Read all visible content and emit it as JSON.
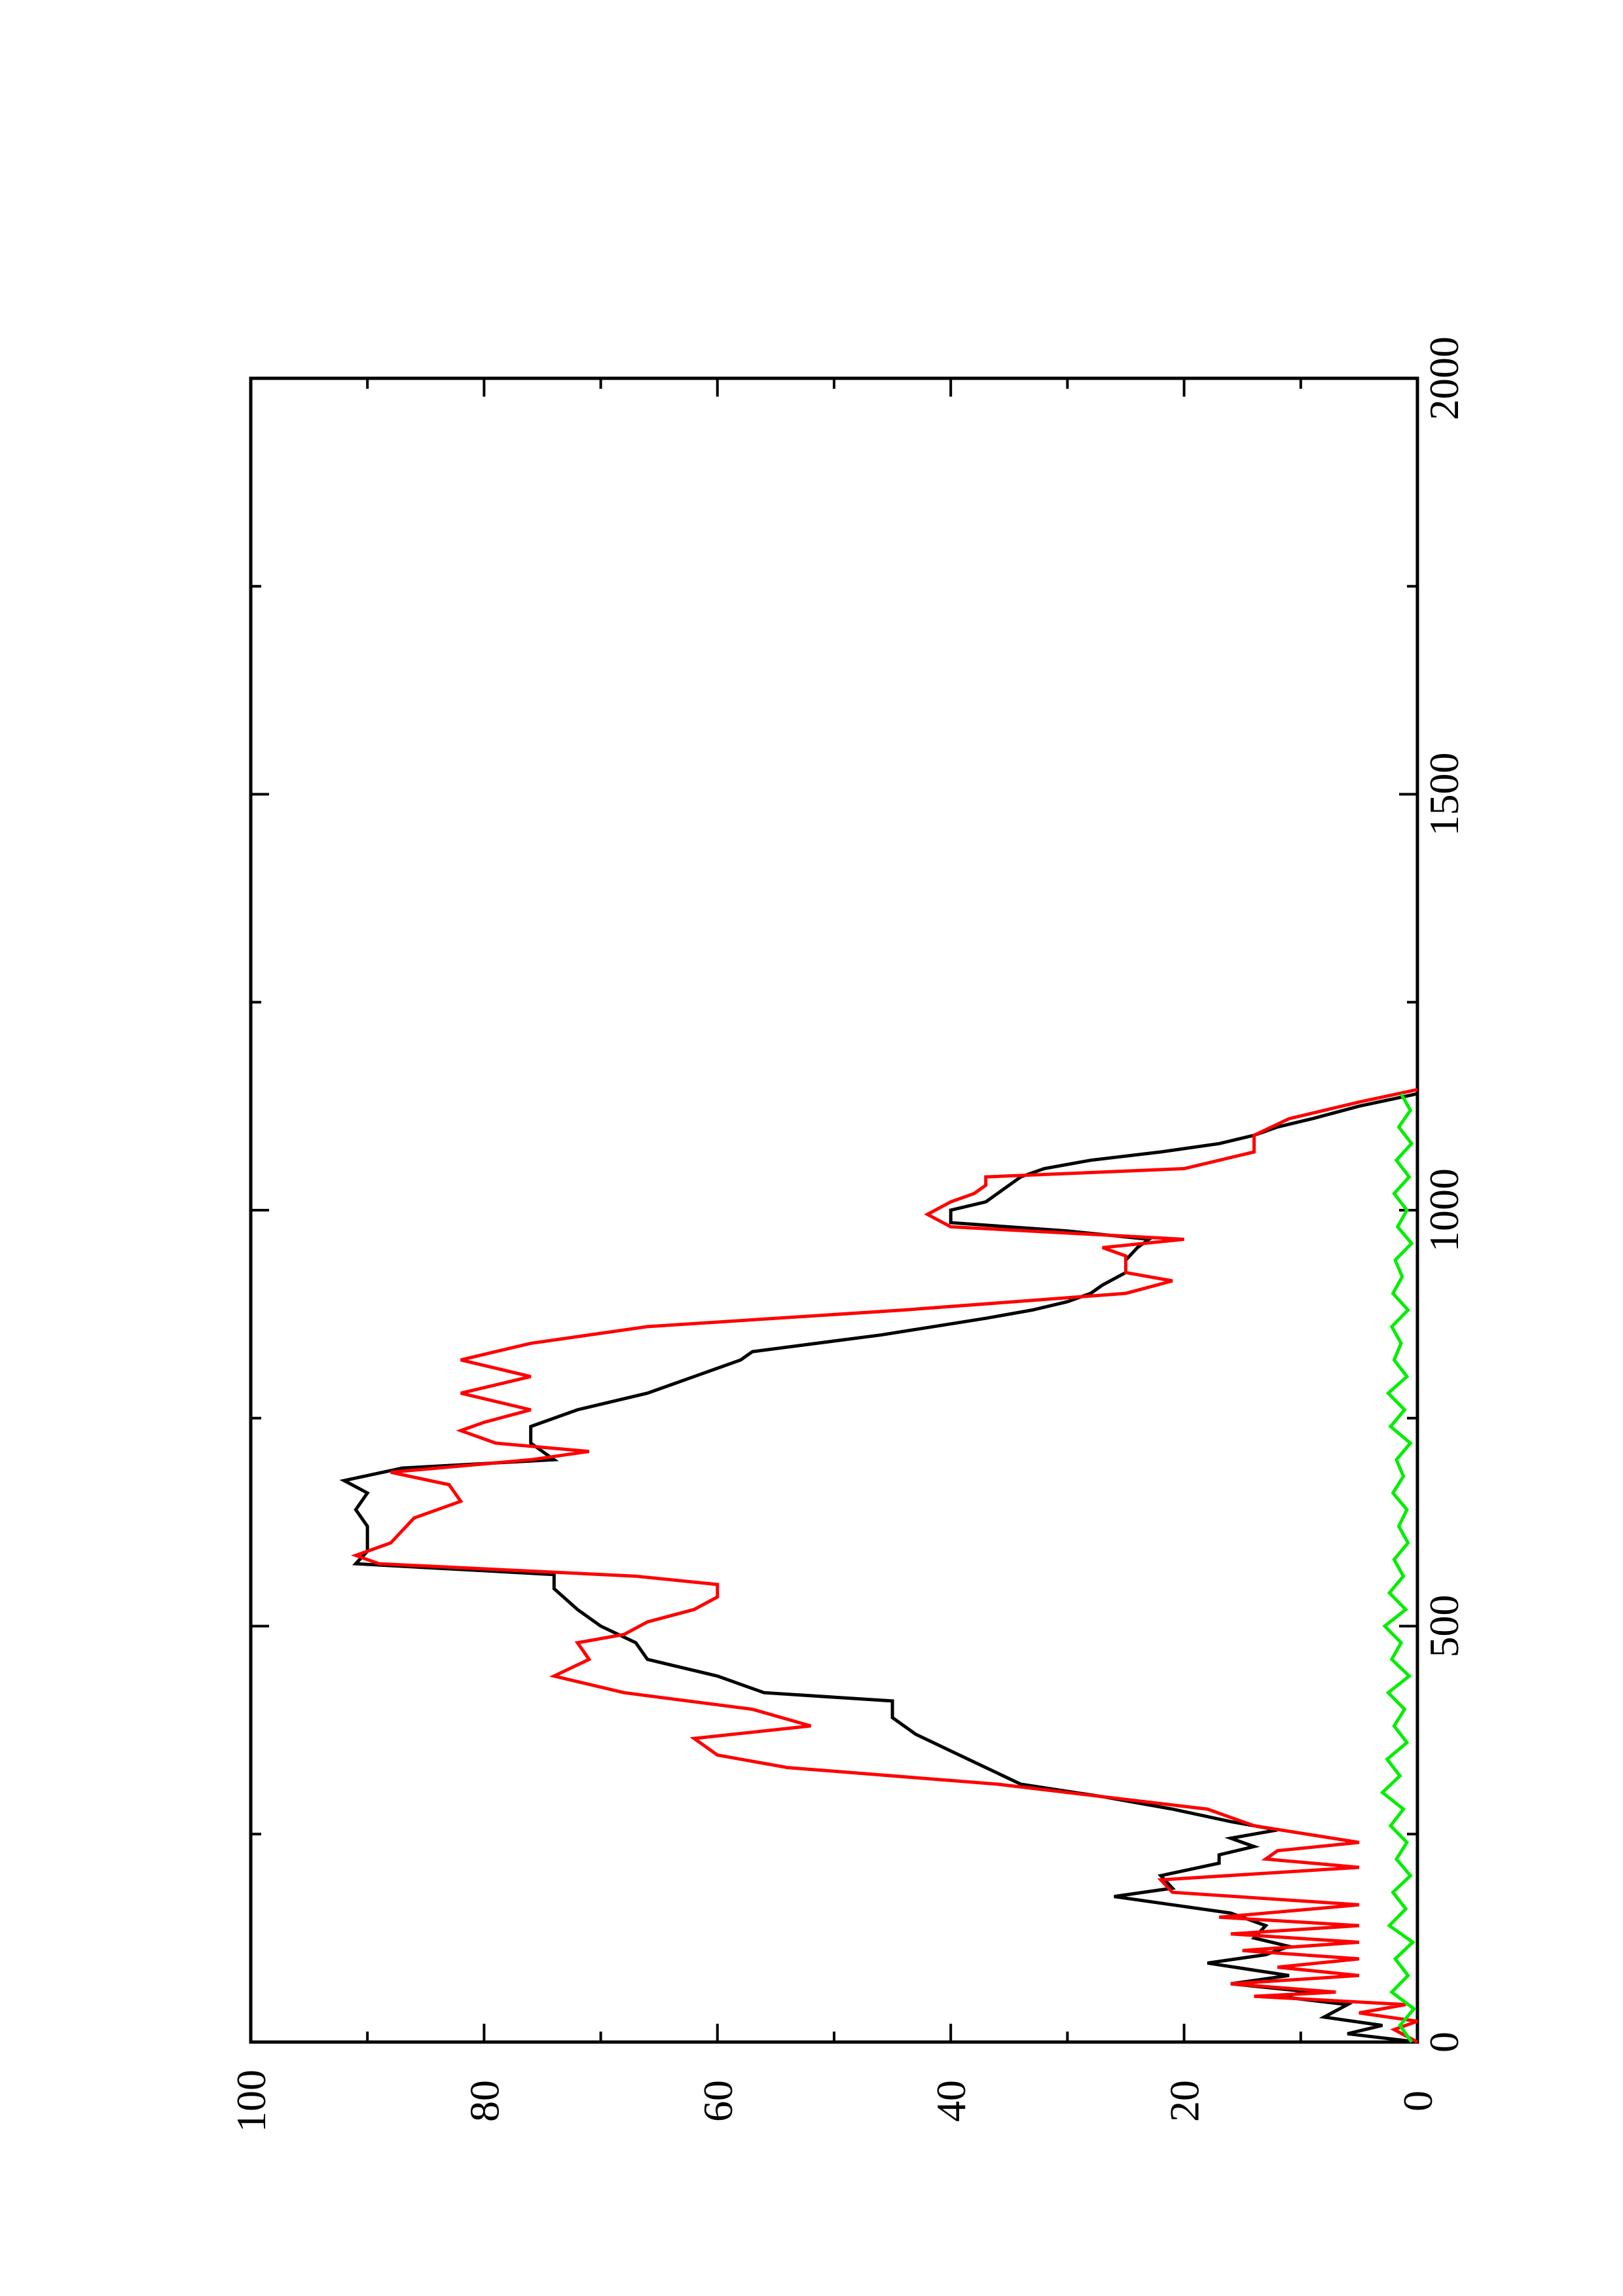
{
  "chart_data": {
    "type": "line",
    "orientation": "rotated 90 degrees counter-clockwise (x axis runs bottom-to-top, y axis runs right-to-left)",
    "title": "",
    "xlabel": "",
    "ylabel": "",
    "xlim": [
      0,
      2000
    ],
    "ylim": [
      0,
      100
    ],
    "x_ticks_major": [
      0,
      500,
      1000,
      1500,
      2000
    ],
    "x_ticks_minor": [
      250,
      750,
      1250,
      1750
    ],
    "y_ticks_major": [
      0,
      20,
      40,
      60,
      80,
      100
    ],
    "y_ticks_minor": [
      10,
      30,
      50,
      70,
      90
    ],
    "x_tick_labels": [
      "0",
      "500",
      "1000",
      "1500",
      "2000"
    ],
    "y_tick_labels": [
      "0",
      "20",
      "40",
      "60",
      "80",
      "100"
    ],
    "grid": false,
    "legend": "none",
    "series": [
      {
        "color": "#000000",
        "points": [
          [
            0,
            0
          ],
          [
            10,
            6
          ],
          [
            20,
            3
          ],
          [
            30,
            8
          ],
          [
            45,
            6
          ],
          [
            55,
            12
          ],
          [
            60,
            9
          ],
          [
            70,
            16
          ],
          [
            80,
            11
          ],
          [
            95,
            18
          ],
          [
            105,
            13
          ],
          [
            115,
            11
          ],
          [
            125,
            14
          ],
          [
            140,
            13
          ],
          [
            155,
            16
          ],
          [
            165,
            21
          ],
          [
            175,
            26
          ],
          [
            185,
            21
          ],
          [
            200,
            22
          ],
          [
            215,
            17
          ],
          [
            225,
            17
          ],
          [
            235,
            14
          ],
          [
            245,
            16
          ],
          [
            255,
            12
          ],
          [
            265,
            16
          ],
          [
            280,
            21
          ],
          [
            295,
            27
          ],
          [
            310,
            34
          ],
          [
            330,
            37
          ],
          [
            350,
            40
          ],
          [
            370,
            43
          ],
          [
            390,
            45
          ],
          [
            410,
            45
          ],
          [
            420,
            56
          ],
          [
            440,
            60
          ],
          [
            460,
            66
          ],
          [
            480,
            67
          ],
          [
            500,
            70
          ],
          [
            520,
            72
          ],
          [
            545,
            74
          ],
          [
            562,
            74
          ],
          [
            575,
            91
          ],
          [
            590,
            90
          ],
          [
            620,
            90
          ],
          [
            640,
            91
          ],
          [
            660,
            90
          ],
          [
            675,
            92
          ],
          [
            690,
            87
          ],
          [
            700,
            74
          ],
          [
            720,
            76
          ],
          [
            740,
            76
          ],
          [
            760,
            72
          ],
          [
            780,
            66
          ],
          [
            800,
            62
          ],
          [
            810,
            60
          ],
          [
            820,
            58
          ],
          [
            830,
            57
          ],
          [
            850,
            46
          ],
          [
            870,
            37
          ],
          [
            880,
            33
          ],
          [
            890,
            30
          ],
          [
            900,
            28
          ],
          [
            910,
            27
          ],
          [
            925,
            25
          ],
          [
            940,
            25
          ],
          [
            955,
            24
          ],
          [
            965,
            23
          ],
          [
            975,
            30
          ],
          [
            985,
            40
          ],
          [
            1000,
            40
          ],
          [
            1010,
            37
          ],
          [
            1020,
            36
          ],
          [
            1030,
            35
          ],
          [
            1040,
            34
          ],
          [
            1050,
            32
          ],
          [
            1060,
            28
          ],
          [
            1070,
            22
          ],
          [
            1080,
            17
          ],
          [
            1090,
            14
          ],
          [
            1100,
            12
          ],
          [
            1110,
            9
          ],
          [
            1125,
            5
          ],
          [
            1140,
            0
          ]
        ]
      },
      {
        "color": "#ff0000",
        "points": [
          [
            0,
            0
          ],
          [
            15,
            2
          ],
          [
            25,
            0
          ],
          [
            35,
            5
          ],
          [
            45,
            1
          ],
          [
            55,
            14
          ],
          [
            60,
            7
          ],
          [
            70,
            16
          ],
          [
            80,
            5
          ],
          [
            90,
            12
          ],
          [
            100,
            5
          ],
          [
            110,
            15
          ],
          [
            120,
            5
          ],
          [
            130,
            16
          ],
          [
            140,
            5
          ],
          [
            150,
            17
          ],
          [
            165,
            5
          ],
          [
            180,
            21
          ],
          [
            195,
            22
          ],
          [
            210,
            5
          ],
          [
            220,
            13
          ],
          [
            230,
            12
          ],
          [
            240,
            5
          ],
          [
            260,
            14
          ],
          [
            280,
            18
          ],
          [
            310,
            36
          ],
          [
            330,
            54
          ],
          [
            345,
            60
          ],
          [
            365,
            62
          ],
          [
            380,
            52
          ],
          [
            400,
            57
          ],
          [
            420,
            68
          ],
          [
            440,
            74
          ],
          [
            460,
            71
          ],
          [
            480,
            72
          ],
          [
            490,
            68
          ],
          [
            505,
            66
          ],
          [
            520,
            62
          ],
          [
            535,
            60
          ],
          [
            550,
            60
          ],
          [
            560,
            67
          ],
          [
            575,
            89
          ],
          [
            585,
            91
          ],
          [
            600,
            88
          ],
          [
            615,
            87
          ],
          [
            630,
            86
          ],
          [
            650,
            82
          ],
          [
            670,
            83
          ],
          [
            685,
            88
          ],
          [
            700,
            76
          ],
          [
            710,
            71
          ],
          [
            720,
            79
          ],
          [
            735,
            82
          ],
          [
            745,
            80
          ],
          [
            760,
            76
          ],
          [
            780,
            82
          ],
          [
            800,
            76
          ],
          [
            820,
            82
          ],
          [
            840,
            76
          ],
          [
            860,
            66
          ],
          [
            880,
            44
          ],
          [
            900,
            25
          ],
          [
            915,
            21
          ],
          [
            925,
            25
          ],
          [
            935,
            25
          ],
          [
            945,
            25
          ],
          [
            955,
            27
          ],
          [
            965,
            20
          ],
          [
            980,
            40
          ],
          [
            995,
            42
          ],
          [
            1010,
            40
          ],
          [
            1020,
            38
          ],
          [
            1030,
            37
          ],
          [
            1040,
            37
          ],
          [
            1050,
            20
          ],
          [
            1070,
            14
          ],
          [
            1080,
            14
          ],
          [
            1090,
            14
          ],
          [
            1110,
            11
          ],
          [
            1130,
            5
          ],
          [
            1145,
            0
          ]
        ]
      },
      {
        "color": "#00ee00",
        "points": [
          [
            0,
            0.5
          ],
          [
            20,
            1.5
          ],
          [
            40,
            0.3
          ],
          [
            60,
            2.2
          ],
          [
            80,
            0.8
          ],
          [
            100,
            1.9
          ],
          [
            120,
            0.4
          ],
          [
            140,
            2.4
          ],
          [
            160,
            1.0
          ],
          [
            180,
            2.1
          ],
          [
            200,
            0.6
          ],
          [
            220,
            1.8
          ],
          [
            240,
            0.9
          ],
          [
            260,
            2.3
          ],
          [
            280,
            1.2
          ],
          [
            300,
            3.0
          ],
          [
            320,
            1.5
          ],
          [
            340,
            2.6
          ],
          [
            360,
            0.9
          ],
          [
            380,
            2.0
          ],
          [
            400,
            1.1
          ],
          [
            420,
            2.5
          ],
          [
            440,
            0.7
          ],
          [
            460,
            2.2
          ],
          [
            480,
            1.4
          ],
          [
            500,
            2.8
          ],
          [
            520,
            1.0
          ],
          [
            540,
            2.4
          ],
          [
            560,
            1.2
          ],
          [
            580,
            2.0
          ],
          [
            600,
            0.8
          ],
          [
            620,
            1.6
          ],
          [
            640,
            0.9
          ],
          [
            660,
            2.1
          ],
          [
            680,
            1.2
          ],
          [
            700,
            1.8
          ],
          [
            720,
            0.6
          ],
          [
            740,
            2.3
          ],
          [
            760,
            1.1
          ],
          [
            780,
            2.5
          ],
          [
            800,
            0.9
          ],
          [
            820,
            2.0
          ],
          [
            840,
            1.4
          ],
          [
            860,
            2.2
          ],
          [
            880,
            0.8
          ],
          [
            900,
            2.1
          ],
          [
            920,
            1.3
          ],
          [
            940,
            1.9
          ],
          [
            960,
            0.5
          ],
          [
            980,
            1.7
          ],
          [
            1000,
            0.9
          ],
          [
            1020,
            2.0
          ],
          [
            1040,
            0.7
          ],
          [
            1060,
            1.8
          ],
          [
            1080,
            0.5
          ],
          [
            1100,
            1.6
          ],
          [
            1120,
            0.6
          ],
          [
            1140,
            1.4
          ]
        ]
      }
    ]
  }
}
